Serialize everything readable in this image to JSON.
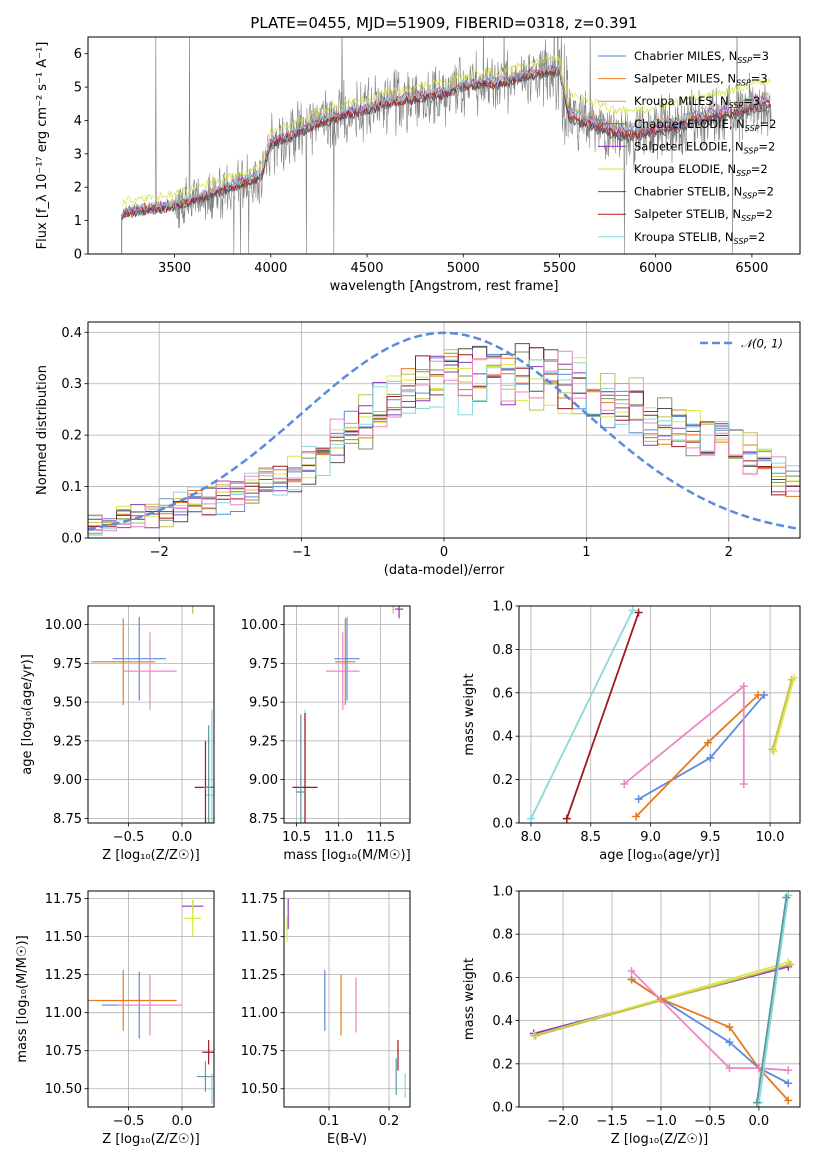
{
  "colors": {
    "series": [
      "#4c7be0",
      "#f07820",
      "#c8a060",
      "#6a6a6a",
      "#9a30c0",
      "#d6e040",
      "#505050",
      "#b01818",
      "#88dcdc"
    ],
    "mix_lines": {
      "blue": "#5b8bdc",
      "orange": "#ea7a18",
      "pink": "#ea88c4",
      "cyan": "#8ad8dc",
      "darkred": "#a01820",
      "purple": "#8c3cb0",
      "yellow": "#d8e848",
      "olive": "#c8c050",
      "teal": "#5a9aa0"
    },
    "gauss": "#5b8bdc",
    "observed": "#808080"
  },
  "chart_data": [
    {
      "type": "line",
      "title": "PLATE=0455, MJD=51909, FIBERID=0318, z=0.391",
      "xlabel": "wavelength [Angstrom, rest frame]",
      "ylabel": "Flux [f_λ 10^-17 erg cm^-2 s^-1 A^-1]",
      "xlim": [
        3050,
        6750
      ],
      "ylim": [
        0,
        6.5
      ],
      "xticks": [
        3500,
        4000,
        4500,
        5000,
        5500,
        6000,
        6500
      ],
      "yticks": [
        0,
        1,
        2,
        3,
        4,
        5,
        6
      ],
      "legend_position": "top-right",
      "series": [
        {
          "name": "Chabrier MILES, N_SSP=3"
        },
        {
          "name": "Salpeter MILES, N_SSP=3"
        },
        {
          "name": "Kroupa MILES, N_SSP=3"
        },
        {
          "name": "Chabrier ELODIE, N_SSP=2"
        },
        {
          "name": "Salpeter ELODIE, N_SSP=2"
        },
        {
          "name": "Kroupa ELODIE, N_SSP=2"
        },
        {
          "name": "Chabrier STELIB, N_SSP=2"
        },
        {
          "name": "Salpeter STELIB, N_SSP=2"
        },
        {
          "name": "Kroupa STELIB, N_SSP=2"
        }
      ],
      "model_continuum": {
        "x": [
          3230,
          3300,
          3400,
          3500,
          3600,
          3700,
          3800,
          3900,
          3950,
          4000,
          4100,
          4200,
          4300,
          4400,
          4500,
          4600,
          4700,
          4800,
          4900,
          5000,
          5100,
          5200,
          5300,
          5400,
          5500,
          5550,
          5600,
          5700,
          5800,
          5900,
          6000,
          6100,
          6200,
          6300,
          6400,
          6500,
          6600
        ],
        "y": [
          1.2,
          1.3,
          1.35,
          1.45,
          1.6,
          1.8,
          2.0,
          2.2,
          2.3,
          3.3,
          3.5,
          3.8,
          4.0,
          4.2,
          4.3,
          4.5,
          4.6,
          4.7,
          4.8,
          5.0,
          5.1,
          5.1,
          5.3,
          5.4,
          5.5,
          4.1,
          4.0,
          3.8,
          3.6,
          3.6,
          3.7,
          3.8,
          4.0,
          4.1,
          4.2,
          4.4,
          4.5
        ]
      }
    },
    {
      "type": "line",
      "xlabel": "(data-model)/error",
      "ylabel": "Normed distribution",
      "xlim": [
        -2.5,
        2.5
      ],
      "ylim": [
        0,
        0.42
      ],
      "xticks": [
        -2,
        -1,
        0,
        1,
        2
      ],
      "yticks": [
        0.0,
        0.1,
        0.2,
        0.3,
        0.4
      ],
      "legend": "𝒩(0, 1)",
      "legend_position": "top-right",
      "gauss": {
        "mu": 0,
        "sigma": 1
      },
      "bin_edges_start": -2.5,
      "bin_width": 0.1,
      "n_bins": 50,
      "hist_shape": [
        0.03,
        0.03,
        0.04,
        0.04,
        0.05,
        0.05,
        0.06,
        0.07,
        0.07,
        0.08,
        0.08,
        0.09,
        0.1,
        0.11,
        0.12,
        0.14,
        0.16,
        0.18,
        0.2,
        0.22,
        0.24,
        0.26,
        0.27,
        0.28,
        0.29,
        0.3,
        0.3,
        0.31,
        0.31,
        0.31,
        0.31,
        0.31,
        0.3,
        0.29,
        0.28,
        0.27,
        0.26,
        0.25,
        0.24,
        0.23,
        0.22,
        0.21,
        0.2,
        0.19,
        0.18,
        0.16,
        0.15,
        0.14,
        0.12,
        0.11
      ]
    },
    {
      "type": "scatter",
      "xlabel": "Z [log10(Z/Z☉)]",
      "ylabel": "age  [log10(age/yr)]",
      "xlim": [
        -0.88,
        0.3
      ],
      "ylim": [
        8.72,
        10.12
      ],
      "xticks": [
        -0.5,
        0.0
      ],
      "xticklabels": [
        "−0.5",
        "0.0"
      ],
      "yticks": [
        8.75,
        9.0,
        9.25,
        9.5,
        9.75,
        10.0
      ],
      "points": [
        {
          "c": "blue",
          "x": -0.4,
          "y": 9.78,
          "ex": 0.25,
          "ey": 0.27
        },
        {
          "c": "orange",
          "x": -0.55,
          "y": 9.76,
          "ex": 0.3,
          "ey": 0.28
        },
        {
          "c": "pink",
          "x": -0.3,
          "y": 9.7,
          "ex": 0.25,
          "ey": 0.25
        },
        {
          "c": "olive",
          "x": 0.1,
          "y": 10.13,
          "ex": 0.08,
          "ey": 0.06
        },
        {
          "c": "cyan",
          "x": 0.28,
          "y": 8.9,
          "ex": 0.06,
          "ey": 0.55
        },
        {
          "c": "darkred",
          "x": 0.22,
          "y": 8.95,
          "ex": 0.1,
          "ey": 0.3
        },
        {
          "c": "teal",
          "x": 0.25,
          "y": 8.95,
          "ex": 0.05,
          "ey": 0.4
        }
      ]
    },
    {
      "type": "scatter",
      "xlabel": "mass [log10(M/M☉)]",
      "xlim": [
        10.35,
        11.85
      ],
      "ylim": [
        8.72,
        10.12
      ],
      "xticks": [
        10.5,
        11.0,
        11.5
      ],
      "yticks": [
        8.75,
        9.0,
        9.25,
        9.5,
        9.75,
        10.0
      ],
      "points": [
        {
          "c": "blue",
          "x": 11.1,
          "y": 9.78,
          "ex": 0.15,
          "ey": 0.27
        },
        {
          "c": "orange",
          "x": 11.08,
          "y": 9.76,
          "ex": 0.12,
          "ey": 0.28
        },
        {
          "c": "pink",
          "x": 11.05,
          "y": 9.7,
          "ex": 0.2,
          "ey": 0.25
        },
        {
          "c": "olive",
          "x": 11.65,
          "y": 10.13,
          "ex": 0.08,
          "ey": 0.06
        },
        {
          "c": "purple",
          "x": 11.72,
          "y": 10.1,
          "ex": 0.05,
          "ey": 0.06
        },
        {
          "c": "cyan",
          "x": 10.6,
          "y": 8.95,
          "ex": 0.05,
          "ey": 0.5
        },
        {
          "c": "darkred",
          "x": 10.6,
          "y": 8.95,
          "ex": 0.15,
          "ey": 0.48
        },
        {
          "c": "teal",
          "x": 10.55,
          "y": 8.92,
          "ex": 0.06,
          "ey": 0.5
        }
      ]
    },
    {
      "type": "line",
      "xlabel": "age  [log10(age/yr)]",
      "ylabel": "mass weight",
      "xlim": [
        7.9,
        10.25
      ],
      "ylim": [
        0,
        1
      ],
      "xticks": [
        8.0,
        8.5,
        9.0,
        9.5,
        10.0
      ],
      "yticks": [
        0.0,
        0.2,
        0.4,
        0.6,
        0.8,
        1.0
      ],
      "series": [
        {
          "c": "cyan",
          "x": [
            8.0,
            8.85
          ],
          "y": [
            0.02,
            0.98
          ]
        },
        {
          "c": "darkred",
          "x": [
            8.3,
            8.9
          ],
          "y": [
            0.02,
            0.97
          ]
        },
        {
          "c": "blue",
          "x": [
            8.9,
            9.5,
            9.95
          ],
          "y": [
            0.11,
            0.3,
            0.59
          ]
        },
        {
          "c": "orange",
          "x": [
            8.88,
            9.48,
            9.9
          ],
          "y": [
            0.03,
            0.37,
            0.59
          ]
        },
        {
          "c": "pink",
          "x": [
            8.78,
            9.78,
            9.78
          ],
          "y": [
            0.18,
            0.63,
            0.18
          ]
        },
        {
          "c": "olive",
          "x": [
            10.02,
            10.18
          ],
          "y": [
            0.34,
            0.66
          ]
        },
        {
          "c": "yellow",
          "x": [
            10.03,
            10.2
          ],
          "y": [
            0.33,
            0.67
          ]
        }
      ]
    },
    {
      "type": "scatter",
      "xlabel": "Z [log10(Z/Z☉)]",
      "ylabel": "mass [log10(M/M☉)]",
      "xlim": [
        -0.88,
        0.3
      ],
      "ylim": [
        10.38,
        11.8
      ],
      "xticks": [
        -0.5,
        0.0
      ],
      "xticklabels": [
        "−0.5",
        "0.0"
      ],
      "yticks": [
        10.5,
        10.75,
        11.0,
        11.25,
        11.5,
        11.75
      ],
      "points": [
        {
          "c": "blue",
          "x": -0.4,
          "y": 11.05,
          "ex": 0.35,
          "ey": 0.22
        },
        {
          "c": "orange",
          "x": -0.55,
          "y": 11.08,
          "ex": 0.5,
          "ey": 0.2
        },
        {
          "c": "pink",
          "x": -0.3,
          "y": 11.05,
          "ex": 0.3,
          "ey": 0.2
        },
        {
          "c": "purple",
          "x": 0.1,
          "y": 11.7,
          "ex": 0.1,
          "ey": 0.04
        },
        {
          "c": "yellow",
          "x": 0.1,
          "y": 11.62,
          "ex": 0.08,
          "ey": 0.12
        },
        {
          "c": "darkred",
          "x": 0.25,
          "y": 10.74,
          "ex": 0.06,
          "ey": 0.08
        },
        {
          "c": "teal",
          "x": 0.22,
          "y": 10.58,
          "ex": 0.08,
          "ey": 0.1
        },
        {
          "c": "cyan",
          "x": 0.28,
          "y": 10.5,
          "ex": 0.03,
          "ey": 0.1
        }
      ]
    },
    {
      "type": "scatter",
      "xlabel": "E(B-V)",
      "xlim": [
        0.025,
        0.235
      ],
      "ylim": [
        10.38,
        11.8
      ],
      "xticks": [
        0.1,
        0.2
      ],
      "yticks": [
        10.5,
        10.75,
        11.0,
        11.25,
        11.5,
        11.75
      ],
      "points": [
        {
          "c": "blue",
          "x": 0.093,
          "y": 11.08,
          "ey": 0.2
        },
        {
          "c": "orange",
          "x": 0.12,
          "y": 11.05,
          "ey": 0.2
        },
        {
          "c": "pink",
          "x": 0.145,
          "y": 11.05,
          "ey": 0.18
        },
        {
          "c": "purple",
          "x": 0.032,
          "y": 11.65,
          "ey": 0.1
        },
        {
          "c": "yellow",
          "x": 0.03,
          "y": 11.55,
          "ey": 0.08
        },
        {
          "c": "darkred",
          "x": 0.215,
          "y": 10.72,
          "ey": 0.1
        },
        {
          "c": "teal",
          "x": 0.212,
          "y": 10.58,
          "ey": 0.12
        },
        {
          "c": "cyan",
          "x": 0.227,
          "y": 10.52,
          "ey": 0.08
        }
      ]
    },
    {
      "type": "line",
      "xlabel": "Z [log10(Z/Z☉)]",
      "ylabel": "mass weight",
      "xlim": [
        -2.45,
        0.42
      ],
      "ylim": [
        0,
        1
      ],
      "xticks": [
        -2.0,
        -1.5,
        -1.0,
        -0.5,
        0.0,
        0.5
      ],
      "xticklabels": [
        "−2.0",
        "−1.5",
        "−1.0",
        "−0.5",
        "0.0",
        "0.5"
      ],
      "yticks": [
        0.0,
        0.2,
        0.4,
        0.6,
        0.8,
        1.0
      ],
      "series": [
        {
          "c": "purple",
          "x": [
            -2.3,
            0.3
          ],
          "y": [
            0.34,
            0.65
          ]
        },
        {
          "c": "yellow",
          "x": [
            -2.3,
            0.3
          ],
          "y": [
            0.33,
            0.67
          ]
        },
        {
          "c": "olive",
          "x": [
            -2.28,
            0.32
          ],
          "y": [
            0.33,
            0.66
          ]
        },
        {
          "c": "blue",
          "x": [
            -1.3,
            -1.0,
            -0.3,
            0.0,
            0.3
          ],
          "y": [
            0.59,
            0.5,
            0.3,
            0.18,
            0.11
          ]
        },
        {
          "c": "orange",
          "x": [
            -1.3,
            -1.0,
            -0.3,
            0.0,
            0.3
          ],
          "y": [
            0.59,
            0.5,
            0.37,
            0.18,
            0.03
          ]
        },
        {
          "c": "pink",
          "x": [
            -1.3,
            -0.3,
            0.0,
            0.3
          ],
          "y": [
            0.63,
            0.18,
            0.18,
            0.17
          ]
        },
        {
          "c": "cyan",
          "x": [
            0.0,
            0.3
          ],
          "y": [
            0.02,
            0.98
          ]
        },
        {
          "c": "teal",
          "x": [
            -0.02,
            0.28
          ],
          "y": [
            0.02,
            0.97
          ]
        }
      ]
    }
  ]
}
